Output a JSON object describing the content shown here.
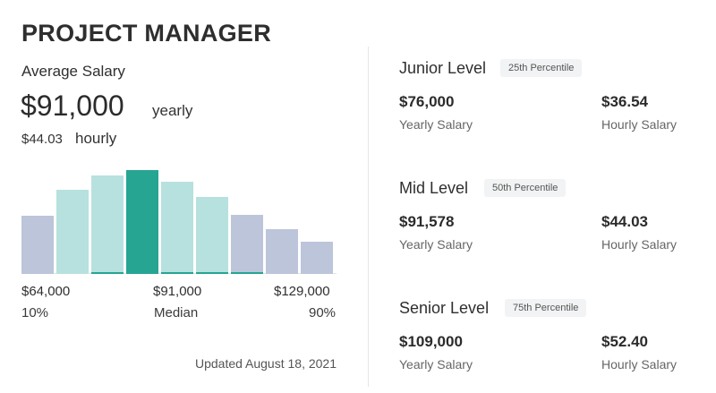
{
  "header": {
    "title": "PROJECT MANAGER"
  },
  "average": {
    "label": "Average Salary",
    "yearly_amount": "$91,000",
    "yearly_unit": "yearly",
    "hourly_amount": "$44.03",
    "hourly_unit": "hourly"
  },
  "histogram": {
    "bars": [
      {
        "value": 56,
        "color": "#bcc5d9",
        "accent": false
      },
      {
        "value": 81,
        "color": "#b7e1de",
        "accent": false
      },
      {
        "value": 95,
        "color": "#b7e1de",
        "accent": true
      },
      {
        "value": 100,
        "color": "#26a593",
        "accent": true
      },
      {
        "value": 89,
        "color": "#b7e1de",
        "accent": true
      },
      {
        "value": 74,
        "color": "#b7e1de",
        "accent": true
      },
      {
        "value": 57,
        "color": "#bcc5d9",
        "accent": true
      },
      {
        "value": 43,
        "color": "#bcc5d9",
        "accent": false
      },
      {
        "value": 31,
        "color": "#bcc5d9",
        "accent": false
      }
    ],
    "accent_color": "#26a593",
    "low_value": "$64,000",
    "mid_value": "$91,000",
    "high_value": "$129,000",
    "low_pct": "10%",
    "mid_pct": "Median",
    "high_pct": "90%"
  },
  "updated": "Updated August 18, 2021",
  "levels": [
    {
      "title": "Junior Level",
      "percentile": "25th Percentile",
      "yearly": "$76,000",
      "yearly_label": "Yearly Salary",
      "hourly": "$36.54",
      "hourly_label": "Hourly Salary"
    },
    {
      "title": "Mid Level",
      "percentile": "50th Percentile",
      "yearly": "$91,578",
      "yearly_label": "Yearly Salary",
      "hourly": "$44.03",
      "hourly_label": "Hourly Salary"
    },
    {
      "title": "Senior Level",
      "percentile": "75th Percentile",
      "yearly": "$109,000",
      "yearly_label": "Yearly Salary",
      "hourly": "$52.40",
      "hourly_label": "Hourly Salary"
    }
  ]
}
